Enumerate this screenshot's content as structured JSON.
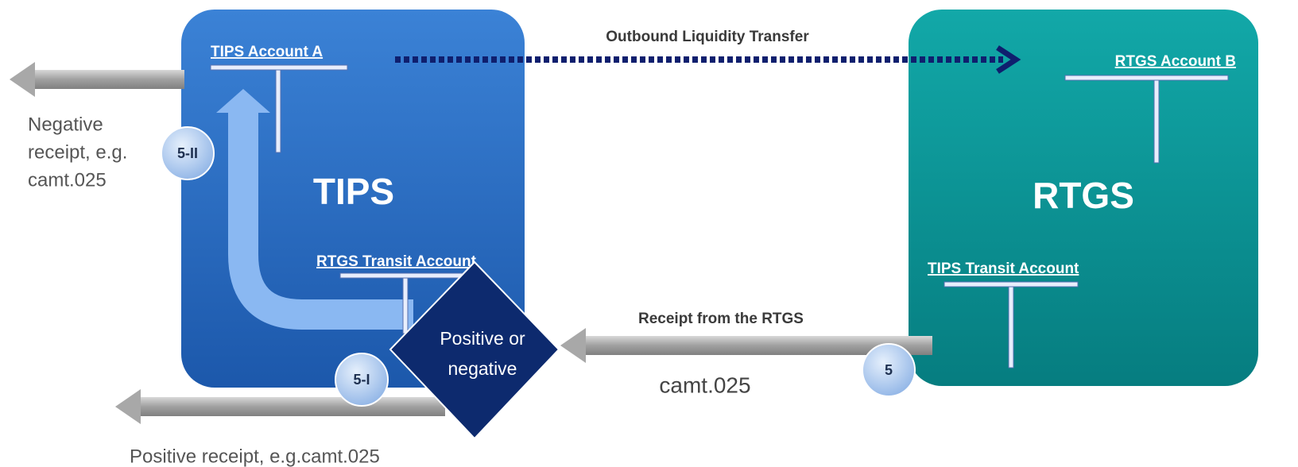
{
  "systems": {
    "tips": "TIPS",
    "rtgs": "RTGS"
  },
  "accounts": {
    "tips_account_a": "TIPS Account A",
    "rtgs_transit_account": "RTGS Transit Account",
    "rtgs_account_b": "RTGS Account B",
    "tips_transit_account": "TIPS Transit Account"
  },
  "flows": {
    "outbound": "Outbound  Liquidity Transfer",
    "receipt": "Receipt from the RTGS",
    "receipt_message": "camt.025"
  },
  "decision": [
    "Positive or",
    "negative"
  ],
  "steps": [
    "5-II",
    "5-I",
    "5"
  ],
  "negative_receipt": [
    "Negative",
    "receipt, e.g.",
    "camt.025"
  ],
  "positive_receipt": "Positive receipt, e.g.camt.025"
}
